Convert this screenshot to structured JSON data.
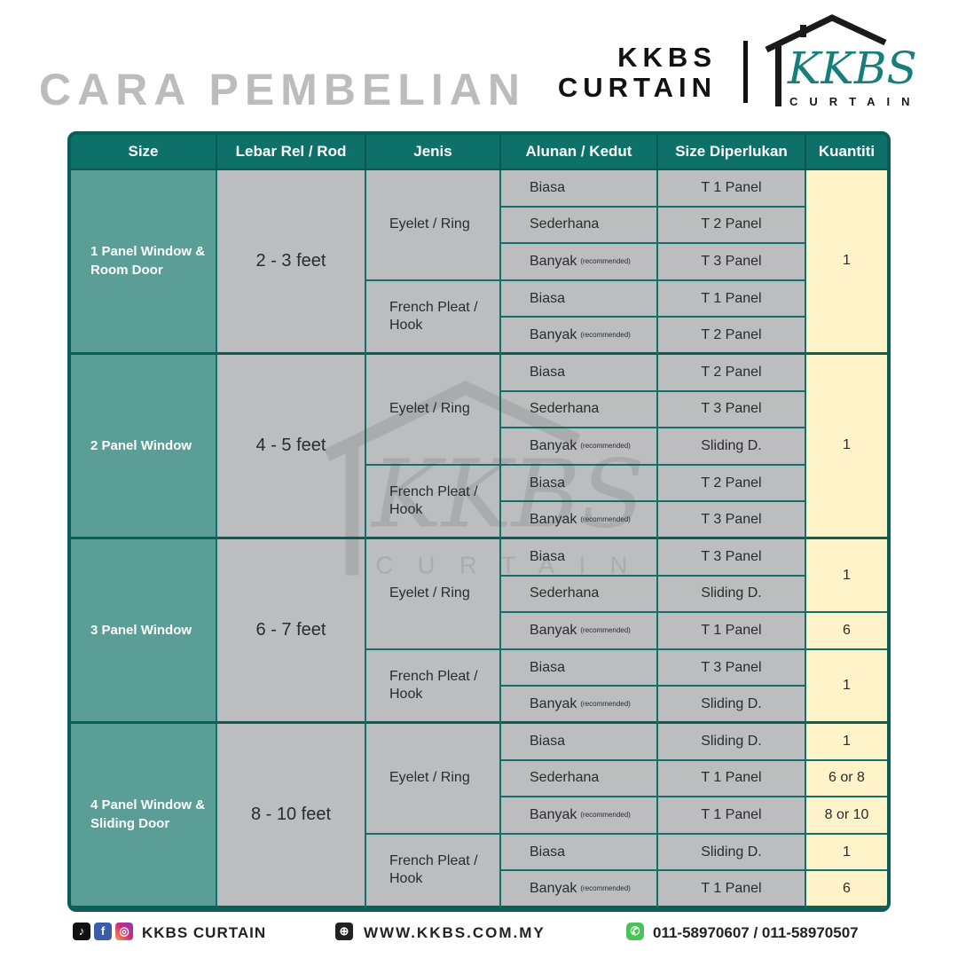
{
  "header": {
    "title": "CARA PEMBELIAN",
    "brand_line1": "KKBS",
    "brand_line2": "CURTAIN",
    "logo_text": "KKBS",
    "logo_sub": "CURTAIN"
  },
  "colors": {
    "teal_dark": "#0b5e58",
    "teal_header": "#0e7169",
    "size_cell": "#5a9e97",
    "gray_cell": "#bcbdbf",
    "quantity_cell": "#fff3c9",
    "title_gray": "#bcbcbc",
    "logo_teal": "#177f7b"
  },
  "table": {
    "columns": [
      "Size",
      "Lebar Rel / Rod",
      "Jenis",
      "Alunan / Kedut",
      "Size Diperlukan",
      "Kuantiti"
    ],
    "groups": [
      {
        "size": "1 Panel Window & Room Door",
        "rod": "2  - 3 feet",
        "jenis": [
          {
            "label": "Eyelet / Ring",
            "rows": [
              {
                "alunan": "Biasa",
                "note": "",
                "size": "T 1 Panel"
              },
              {
                "alunan": "Sederhana",
                "note": "",
                "size": "T 2 Panel"
              },
              {
                "alunan": "Banyak",
                "note": "(recommended)",
                "size": "T 3 Panel"
              }
            ]
          },
          {
            "label": "French Pleat / Hook",
            "rows": [
              {
                "alunan": "Biasa",
                "note": "",
                "size": "T 1 Panel"
              },
              {
                "alunan": "Banyak",
                "note": "(recommended)",
                "size": "T 2 Panel"
              }
            ]
          }
        ],
        "quantities": [
          {
            "value": "1",
            "rows": 5
          }
        ]
      },
      {
        "size": "2 Panel Window",
        "rod": "4 - 5 feet",
        "jenis": [
          {
            "label": "Eyelet / Ring",
            "rows": [
              {
                "alunan": "Biasa",
                "note": "",
                "size": "T 2 Panel"
              },
              {
                "alunan": "Sederhana",
                "note": "",
                "size": "T 3 Panel"
              },
              {
                "alunan": "Banyak",
                "note": "(recommended)",
                "size": "Sliding D."
              }
            ]
          },
          {
            "label": "French Pleat / Hook",
            "rows": [
              {
                "alunan": "Biasa",
                "note": "",
                "size": "T 2 Panel"
              },
              {
                "alunan": "Banyak",
                "note": "(recommended)",
                "size": "T 3 Panel"
              }
            ]
          }
        ],
        "quantities": [
          {
            "value": "1",
            "rows": 5
          }
        ]
      },
      {
        "size": "3 Panel Window",
        "rod": "6 - 7 feet",
        "jenis": [
          {
            "label": "Eyelet / Ring",
            "rows": [
              {
                "alunan": "Biasa",
                "note": "",
                "size": "T 3 Panel"
              },
              {
                "alunan": "Sederhana",
                "note": "",
                "size": "Sliding D."
              },
              {
                "alunan": "Banyak",
                "note": "(recommended)",
                "size": "T 1 Panel"
              }
            ]
          },
          {
            "label": "French Pleat / Hook",
            "rows": [
              {
                "alunan": "Biasa",
                "note": "",
                "size": "T 3 Panel"
              },
              {
                "alunan": "Banyak",
                "note": "(recommended)",
                "size": "Sliding D."
              }
            ]
          }
        ],
        "quantities": [
          {
            "value": "1",
            "rows": 2
          },
          {
            "value": "6",
            "rows": 1
          },
          {
            "value": "1",
            "rows": 2
          }
        ]
      },
      {
        "size": "4 Panel Window & Sliding Door",
        "rod": "8 - 10 feet",
        "jenis": [
          {
            "label": "Eyelet / Ring",
            "rows": [
              {
                "alunan": "Biasa",
                "note": "",
                "size": "Sliding D."
              },
              {
                "alunan": "Sederhana",
                "note": "",
                "size": "T 1 Panel"
              },
              {
                "alunan": "Banyak",
                "note": "(recommended)",
                "size": "T 1 Panel"
              }
            ]
          },
          {
            "label": "French Pleat / Hook",
            "rows": [
              {
                "alunan": "Biasa",
                "note": "",
                "size": "Sliding D."
              },
              {
                "alunan": "Banyak",
                "note": "(recommended)",
                "size": "T 1 Panel"
              }
            ]
          }
        ],
        "quantities": [
          {
            "value": "1",
            "rows": 1
          },
          {
            "value": "6 or 8",
            "rows": 1
          },
          {
            "value": "8 or 10",
            "rows": 1
          },
          {
            "value": "1",
            "rows": 1
          },
          {
            "value": "6",
            "rows": 1
          }
        ]
      }
    ]
  },
  "footer": {
    "social": "KKBS CURTAIN",
    "website": "WWW.KKBS.COM.MY",
    "phone": "011-58970607 / 011-58970507",
    "icons": [
      "tiktok-icon",
      "facebook-icon",
      "instagram-icon",
      "globe-icon",
      "whatsapp-icon"
    ]
  }
}
